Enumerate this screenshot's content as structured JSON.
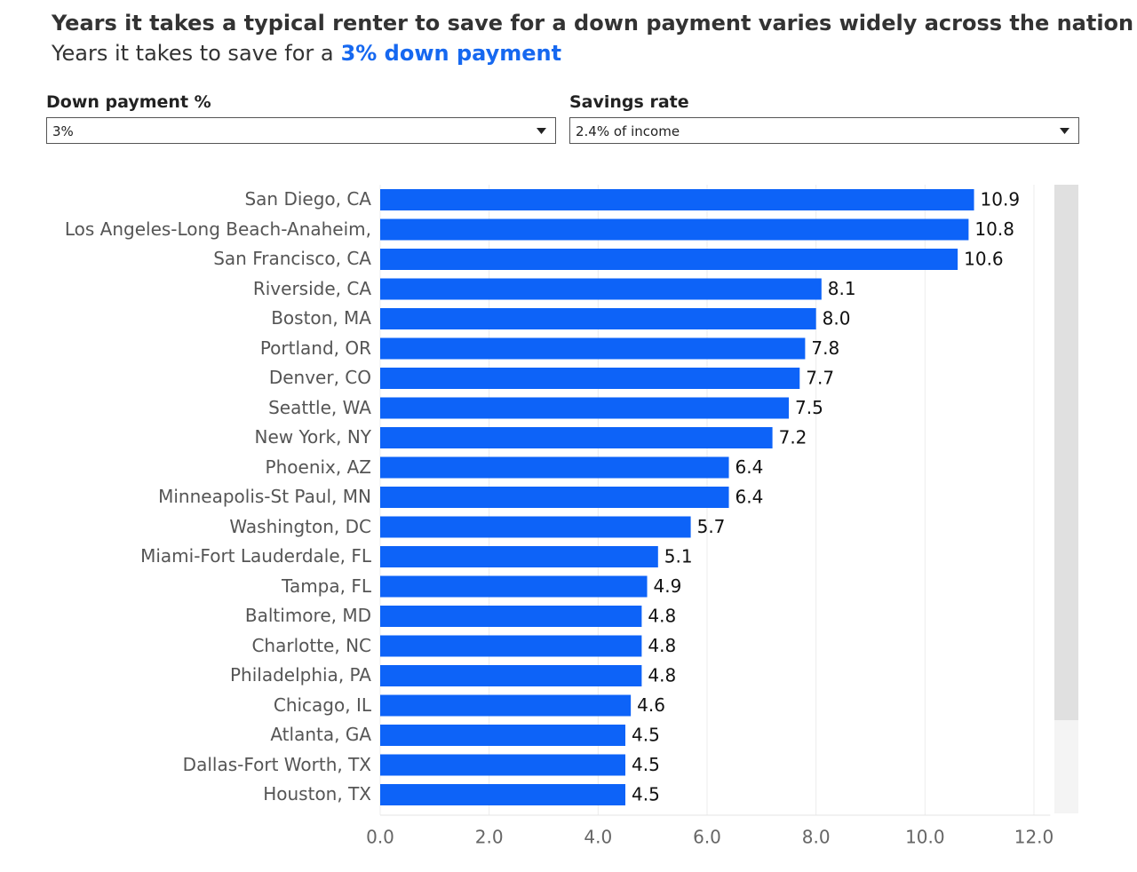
{
  "chart_data": {
    "type": "bar",
    "orientation": "horizontal",
    "title": "Years it takes a typical renter to save for a down payment varies widely across the nation",
    "subtitle": "Years it takes to save for a",
    "subtitle_highlight": "3% down payment",
    "categories": [
      "San Diego, CA",
      "Los Angeles-Long Beach-Anaheim, CA",
      "San Francisco, CA",
      "Riverside, CA",
      "Boston, MA",
      "Portland, OR",
      "Denver, CO",
      "Seattle, WA",
      "New York, NY",
      "Phoenix, AZ",
      "Minneapolis-St Paul, MN",
      "Washington, DC",
      "Miami-Fort Lauderdale, FL",
      "Tampa, FL",
      "Baltimore, MD",
      "Charlotte, NC",
      "Philadelphia, PA",
      "Chicago, IL",
      "Atlanta, GA",
      "Dallas-Fort Worth, TX",
      "Houston, TX"
    ],
    "values": [
      10.9,
      10.8,
      10.6,
      8.1,
      8.0,
      7.8,
      7.7,
      7.5,
      7.2,
      6.4,
      6.4,
      5.7,
      5.1,
      4.9,
      4.8,
      4.8,
      4.8,
      4.6,
      4.5,
      4.5,
      4.5
    ],
    "value_labels": [
      "10.9",
      "10.8",
      "10.6",
      "8.1",
      "8.0",
      "7.8",
      "7.7",
      "7.5",
      "7.2",
      "6.4",
      "6.4",
      "5.7",
      "5.1",
      "4.9",
      "4.8",
      "4.8",
      "4.8",
      "4.6",
      "4.5",
      "4.5",
      "4.5"
    ],
    "color": "#0d63f8",
    "xlim": [
      0,
      12.3
    ],
    "xticks": [
      {
        "value": 0,
        "label": "0.0"
      },
      {
        "value": 2,
        "label": "2.0"
      },
      {
        "value": 4,
        "label": "4.0"
      },
      {
        "value": 6,
        "label": "6.0"
      },
      {
        "value": 8,
        "label": "8.0"
      },
      {
        "value": 10,
        "label": "10.0"
      },
      {
        "value": 12,
        "label": "12.0"
      }
    ],
    "grid": true
  },
  "filters": [
    {
      "label": "Down payment %",
      "selected": "3%"
    },
    {
      "label": "Savings rate",
      "selected": "2.4% of income"
    }
  ]
}
